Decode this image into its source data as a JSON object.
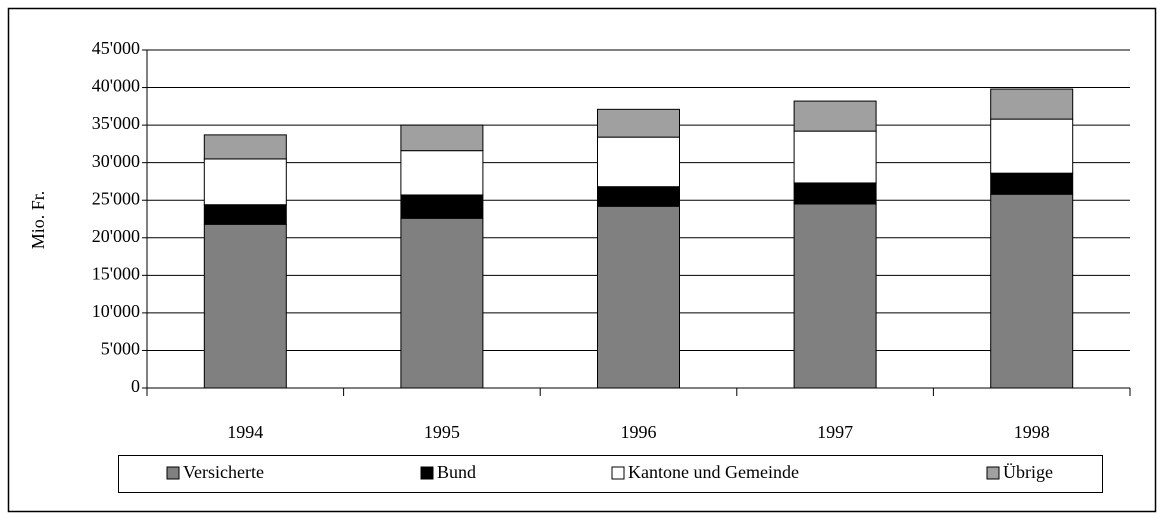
{
  "chart_data": {
    "type": "bar",
    "stacked": true,
    "ylabel": "Mio. Fr.",
    "categories": [
      "1994",
      "1995",
      "1996",
      "1997",
      "1998"
    ],
    "series": [
      {
        "name": "Versicherte",
        "color": "#808080",
        "values": [
          21800,
          22600,
          24200,
          24500,
          25800
        ]
      },
      {
        "name": "Bund",
        "color": "#000000",
        "values": [
          2600,
          3100,
          2600,
          2800,
          2800
        ]
      },
      {
        "name": "Kantone und Gemeinde",
        "color": "#ffffff",
        "values": [
          6100,
          5900,
          6600,
          6900,
          7200
        ]
      },
      {
        "name": "Übrige",
        "color": "#a0a0a0",
        "values": [
          3200,
          3400,
          3700,
          4000,
          4000
        ]
      }
    ],
    "ylim": [
      0,
      45000
    ],
    "yticks": [
      0,
      {
        "value": 5000,
        "label": "5'000"
      },
      {
        "value": 10000,
        "label": "10'000"
      },
      {
        "value": 15000,
        "label": "15'000"
      },
      {
        "value": 20000,
        "label": "20'000"
      },
      {
        "value": 25000,
        "label": "25'000"
      },
      {
        "value": 30000,
        "label": "30'000"
      },
      {
        "value": 35000,
        "label": "35'000"
      },
      {
        "value": 40000,
        "label": "40'000"
      },
      {
        "value": 45000,
        "label": "45'000"
      }
    ],
    "grid": true,
    "legend": "bottom"
  }
}
